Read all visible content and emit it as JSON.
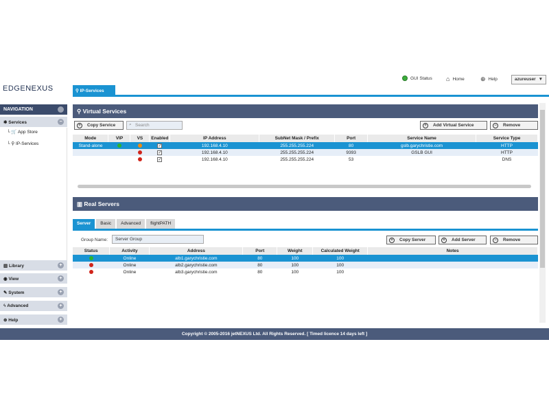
{
  "brand": {
    "logo_a": "EDGE",
    "logo_b": "NEXUS"
  },
  "top": {
    "gui_status": "GUI Status",
    "home": "Home",
    "help": "Help",
    "user": "azureuser"
  },
  "active_tab": "IP-Services",
  "nav": {
    "title": "NAVIGATION",
    "services": "Services",
    "app_store": "App Store",
    "ip_services": "IP-Services",
    "library": "Library",
    "view": "View",
    "system": "System",
    "advanced": "Advanced",
    "help": "Help"
  },
  "vs": {
    "title": "Virtual Services",
    "copy": "Copy Service",
    "search_placeholder": "Search",
    "add": "Add Virtual Service",
    "remove": "Remove",
    "columns": [
      "Mode",
      "VIP",
      "VS",
      "Enabled",
      "IP Address",
      "SubNet Mask / Prefix",
      "Port",
      "Service Name",
      "Service Type"
    ],
    "rows": [
      {
        "mode": "Stand-alone",
        "vip": "green",
        "vs": "orange",
        "enabled": "✓",
        "ip": "192.168.4.10",
        "mask": "255.255.255.224",
        "port": "80",
        "name": "gslb.garychristie.com",
        "type": "HTTP"
      },
      {
        "mode": "",
        "vip": "",
        "vs": "red",
        "enabled": "✓",
        "ip": "192.168.4.10",
        "mask": "255.255.255.224",
        "port": "9393",
        "name": "GSLB GUI",
        "type": "HTTP"
      },
      {
        "mode": "",
        "vip": "",
        "vs": "red",
        "enabled": "✓",
        "ip": "192.168.4.10",
        "mask": "255.255.255.224",
        "port": "53",
        "name": "",
        "type": "DNS"
      }
    ]
  },
  "rs": {
    "title": "Real Servers",
    "tabs": [
      "Server",
      "Basic",
      "Advanced",
      "flightPATH"
    ],
    "group_label": "Group Name:",
    "group_value": "Server Group",
    "copy": "Copy Server",
    "add": "Add Server",
    "remove": "Remove",
    "columns": [
      "Status",
      "Activity",
      "Address",
      "Port",
      "Weight",
      "Calculated Weight",
      "Notes"
    ],
    "rows": [
      {
        "status": "green",
        "activity": "Online",
        "address": "alb1.garychristie.com",
        "port": "80",
        "weight": "100",
        "calc": "100",
        "notes": ""
      },
      {
        "status": "red",
        "activity": "Online",
        "address": "alb2.garychristie.com",
        "port": "80",
        "weight": "100",
        "calc": "100",
        "notes": ""
      },
      {
        "status": "red",
        "activity": "Online",
        "address": "alb3.garychristie.com",
        "port": "80",
        "weight": "100",
        "calc": "100",
        "notes": ""
      }
    ]
  },
  "footer": "Copyright © 2005-2016 jetNEXUS Ltd. All Rights Reserved.  [ Timed licence 14 days left ]"
}
